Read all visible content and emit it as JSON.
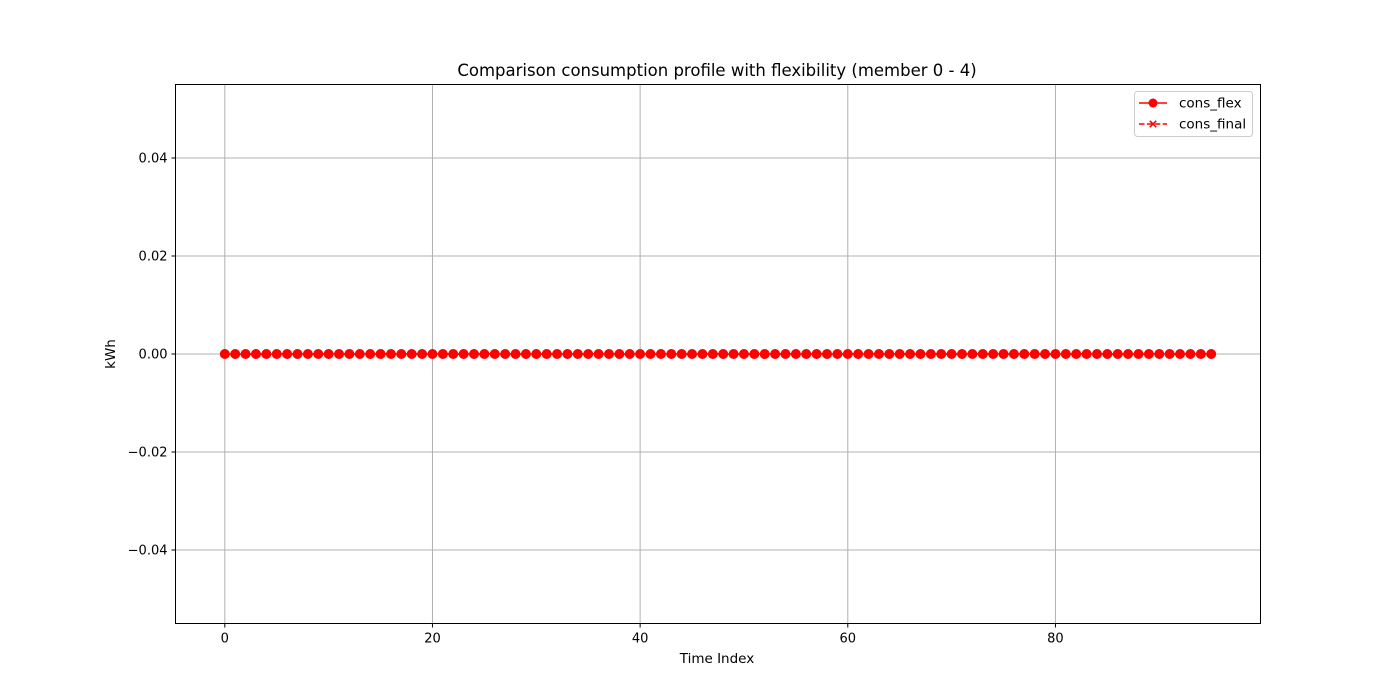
{
  "chart_data": {
    "type": "line",
    "title": "Comparison consumption profile with flexibility (member 0 - 4)",
    "xlabel": "Time Index",
    "ylabel": "kWh",
    "xlim": [
      -4.75,
      99.75
    ],
    "ylim": [
      -0.055,
      0.055
    ],
    "x_ticks": [
      0,
      20,
      40,
      60,
      80
    ],
    "x_tick_labels": [
      "0",
      "20",
      "40",
      "60",
      "80"
    ],
    "y_ticks": [
      -0.04,
      -0.02,
      0.0,
      0.02,
      0.04
    ],
    "y_tick_labels": [
      "−0.04",
      "−0.02",
      "0.00",
      "0.02",
      "0.04"
    ],
    "grid": true,
    "legend_position": "top-right",
    "n_points": 96,
    "series": [
      {
        "name": "cons_flex",
        "color": "#ff0000",
        "linestyle": "solid",
        "marker": "circle",
        "x_start": 0,
        "x_step": 1,
        "constant_value": 0.0
      },
      {
        "name": "cons_final",
        "color": "#ff0000",
        "linestyle": "dashed",
        "marker": "x",
        "x_start": 0,
        "x_step": 1,
        "constant_value": 0.0
      }
    ]
  }
}
